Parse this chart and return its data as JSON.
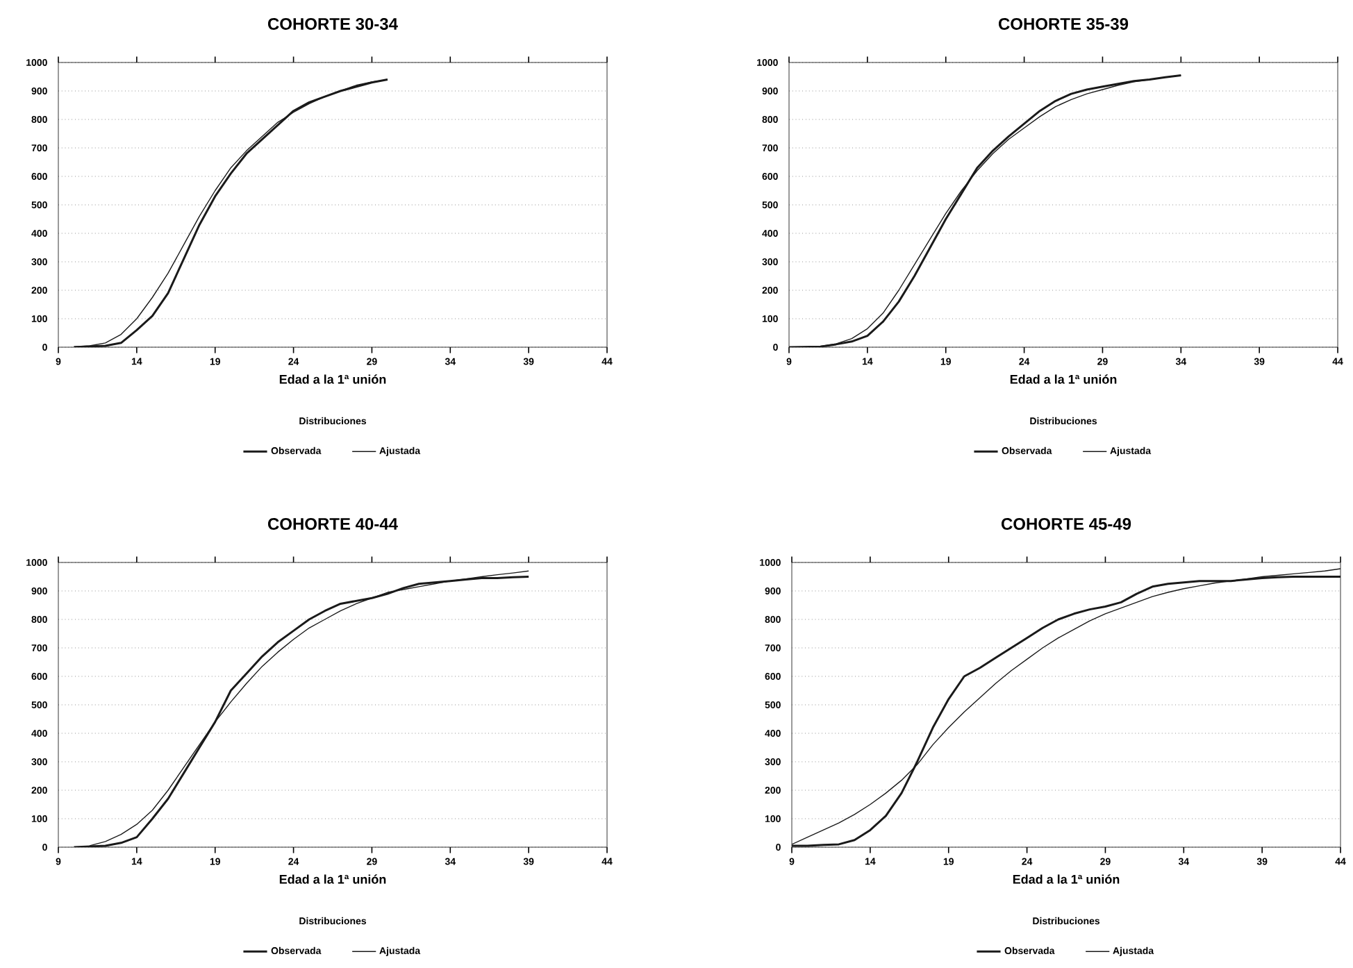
{
  "chart_data": [
    {
      "type": "line",
      "title": "COHORTE 30-34",
      "xlabel": "Edad a la 1ª unión",
      "legend_title": "Distribuciones",
      "legend": "bottom",
      "grid": "y",
      "xlim": [
        9,
        44
      ],
      "xticks": [
        9,
        14,
        19,
        24,
        29,
        34,
        39,
        44
      ],
      "ylim": [
        0,
        1000
      ],
      "yticks": [
        0,
        100,
        200,
        300,
        400,
        500,
        600,
        700,
        800,
        900,
        1000
      ],
      "series": [
        {
          "name": "Observada",
          "color": "#1a1a1a",
          "x": [
            10,
            12,
            13,
            14,
            15,
            16,
            17,
            18,
            19,
            20,
            21,
            22,
            23,
            24,
            25,
            26,
            27,
            28,
            29,
            30
          ],
          "values": [
            0,
            5,
            15,
            60,
            110,
            190,
            310,
            430,
            530,
            610,
            680,
            730,
            780,
            830,
            860,
            880,
            900,
            915,
            930,
            940
          ]
        },
        {
          "name": "Ajustada",
          "color": "#1a1a1a",
          "x": [
            10,
            11,
            12,
            13,
            14,
            15,
            16,
            17,
            18,
            19,
            20,
            21,
            22,
            23,
            24,
            25,
            26,
            27,
            28,
            29,
            30
          ],
          "values": [
            2,
            5,
            15,
            45,
            100,
            175,
            260,
            360,
            460,
            550,
            630,
            690,
            740,
            790,
            825,
            855,
            880,
            900,
            920,
            932,
            940
          ]
        }
      ]
    },
    {
      "type": "line",
      "title": "COHORTE 35-39",
      "xlabel": "Edad a la 1ª unión",
      "legend_title": "Distribuciones",
      "legend": "bottom",
      "grid": "y",
      "xlim": [
        9,
        44
      ],
      "xticks": [
        9,
        14,
        19,
        24,
        29,
        34,
        39,
        44
      ],
      "ylim": [
        0,
        1000
      ],
      "yticks": [
        0,
        100,
        200,
        300,
        400,
        500,
        600,
        700,
        800,
        900,
        1000
      ],
      "series": [
        {
          "name": "Observada",
          "color": "#1a1a1a",
          "x": [
            9,
            11,
            12,
            13,
            14,
            15,
            16,
            17,
            18,
            19,
            20,
            21,
            22,
            23,
            24,
            25,
            26,
            27,
            28,
            29,
            30,
            31,
            32,
            33,
            34
          ],
          "values": [
            0,
            2,
            10,
            20,
            40,
            90,
            160,
            250,
            350,
            450,
            540,
            630,
            690,
            740,
            785,
            830,
            865,
            890,
            905,
            915,
            925,
            935,
            940,
            948,
            955
          ]
        },
        {
          "name": "Ajustada",
          "color": "#1a1a1a",
          "x": [
            11,
            12,
            13,
            14,
            15,
            16,
            17,
            18,
            19,
            20,
            21,
            22,
            23,
            24,
            25,
            26,
            27,
            28,
            29,
            30,
            31,
            32,
            33,
            34
          ],
          "values": [
            3,
            12,
            30,
            65,
            120,
            200,
            290,
            380,
            470,
            550,
            620,
            680,
            730,
            770,
            810,
            845,
            870,
            890,
            905,
            920,
            932,
            940,
            948,
            955
          ]
        }
      ]
    },
    {
      "type": "line",
      "title": "COHORTE 40-44",
      "xlabel": "Edad a la 1ª unión",
      "legend_title": "Distribuciones",
      "legend": "bottom",
      "grid": "y",
      "xlim": [
        9,
        44
      ],
      "xticks": [
        9,
        14,
        19,
        24,
        29,
        34,
        39,
        44
      ],
      "ylim": [
        0,
        1000
      ],
      "yticks": [
        0,
        100,
        200,
        300,
        400,
        500,
        600,
        700,
        800,
        900,
        1000
      ],
      "series": [
        {
          "name": "Observada",
          "color": "#1a1a1a",
          "x": [
            10,
            12,
            13,
            14,
            15,
            16,
            17,
            18,
            19,
            20,
            21,
            22,
            23,
            24,
            25,
            26,
            27,
            28,
            29,
            30,
            31,
            32,
            33,
            34,
            35,
            36,
            37,
            38,
            39
          ],
          "values": [
            0,
            5,
            15,
            35,
            100,
            170,
            260,
            350,
            440,
            550,
            610,
            670,
            720,
            760,
            800,
            830,
            855,
            865,
            875,
            890,
            910,
            925,
            930,
            935,
            940,
            945,
            945,
            948,
            950
          ]
        },
        {
          "name": "Ajustada",
          "color": "#1a1a1a",
          "x": [
            11,
            12,
            13,
            14,
            15,
            16,
            17,
            18,
            19,
            20,
            21,
            22,
            23,
            24,
            25,
            26,
            27,
            28,
            29,
            30,
            31,
            32,
            33,
            34,
            35,
            36,
            37,
            38,
            39
          ],
          "values": [
            5,
            20,
            45,
            80,
            130,
            200,
            280,
            360,
            440,
            510,
            575,
            635,
            685,
            730,
            770,
            800,
            830,
            855,
            875,
            895,
            905,
            915,
            925,
            935,
            942,
            950,
            957,
            963,
            970
          ]
        }
      ]
    },
    {
      "type": "line",
      "title": "COHORTE 45-49",
      "xlabel": "Edad a la 1ª unión",
      "legend_title": "Distribuciones",
      "legend": "bottom",
      "grid": "y",
      "xlim": [
        9,
        44
      ],
      "xticks": [
        9,
        14,
        19,
        24,
        29,
        34,
        39,
        44
      ],
      "ylim": [
        0,
        1000
      ],
      "yticks": [
        0,
        100,
        200,
        300,
        400,
        500,
        600,
        700,
        800,
        900,
        1000
      ],
      "series": [
        {
          "name": "Observada",
          "color": "#1a1a1a",
          "x": [
            9,
            10,
            11,
            12,
            13,
            14,
            15,
            16,
            17,
            18,
            19,
            20,
            21,
            22,
            23,
            24,
            25,
            26,
            27,
            28,
            29,
            30,
            31,
            32,
            33,
            34,
            35,
            36,
            37,
            38,
            39,
            40,
            41,
            42,
            43,
            44
          ],
          "values": [
            5,
            5,
            8,
            10,
            25,
            60,
            110,
            190,
            300,
            420,
            520,
            600,
            630,
            665,
            700,
            735,
            770,
            800,
            820,
            835,
            845,
            860,
            890,
            915,
            925,
            930,
            935,
            935,
            935,
            940,
            945,
            948,
            950,
            950,
            950,
            950
          ]
        },
        {
          "name": "Ajustada",
          "color": "#1a1a1a",
          "x": [
            9,
            10,
            11,
            12,
            13,
            14,
            15,
            16,
            17,
            18,
            19,
            20,
            21,
            22,
            23,
            24,
            25,
            26,
            27,
            28,
            29,
            30,
            31,
            32,
            33,
            34,
            35,
            36,
            37,
            38,
            39,
            40,
            41,
            42,
            43,
            44
          ],
          "values": [
            10,
            35,
            60,
            85,
            115,
            150,
            190,
            235,
            290,
            360,
            420,
            475,
            525,
            575,
            620,
            660,
            700,
            735,
            765,
            795,
            820,
            840,
            860,
            880,
            895,
            908,
            918,
            928,
            935,
            942,
            950,
            955,
            960,
            965,
            970,
            978
          ]
        }
      ]
    }
  ]
}
